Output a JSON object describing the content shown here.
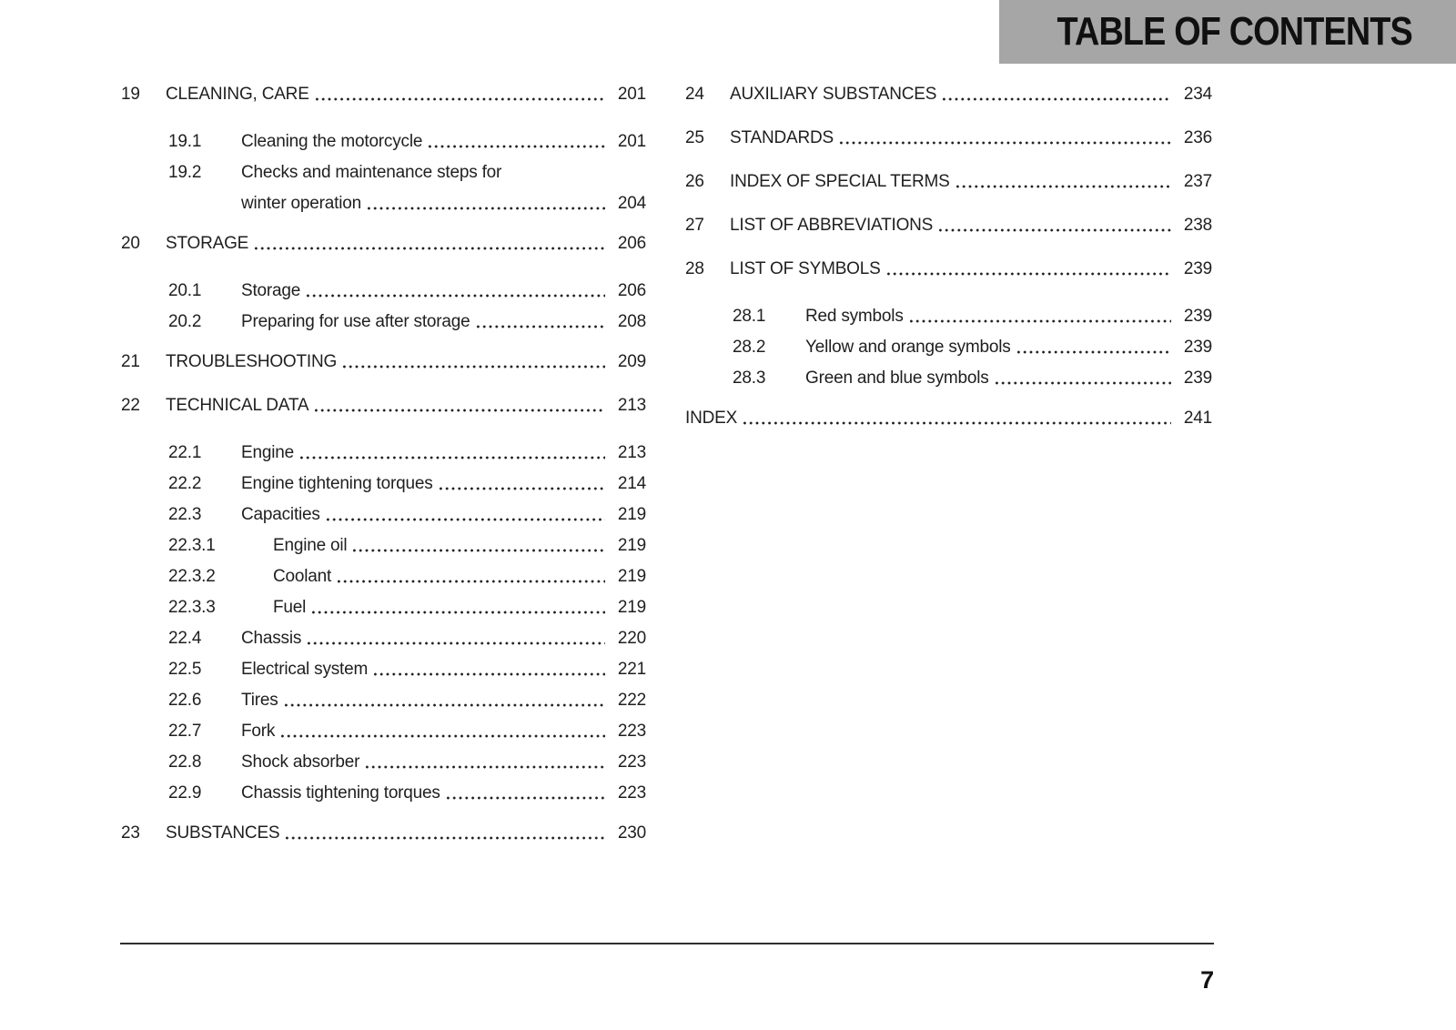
{
  "header": {
    "title": "TABLE OF CONTENTS"
  },
  "footer": {
    "page_number": "7"
  },
  "colors": {
    "header_bg": "#a6a6a6",
    "text": "#1f1f1f",
    "rule": "#2d2d2d"
  },
  "toc": {
    "columns": [
      {
        "entries": [
          {
            "level": "chapter",
            "number": "19",
            "title": "CLEANING, CARE",
            "page": "201"
          },
          {
            "level": "sub",
            "number": "19.1",
            "title": "Cleaning the motorcycle",
            "page": "201"
          },
          {
            "level": "sub",
            "number": "19.2",
            "title_line1": "Checks and maintenance steps for",
            "title": "winter operation",
            "page": "204"
          },
          {
            "level": "chapter",
            "number": "20",
            "title": "STORAGE",
            "page": "206"
          },
          {
            "level": "sub",
            "number": "20.1",
            "title": "Storage",
            "page": "206"
          },
          {
            "level": "sub",
            "number": "20.2",
            "title": "Preparing for use after storage",
            "page": "208"
          },
          {
            "level": "chapter",
            "number": "21",
            "title": "TROUBLESHOOTING",
            "page": "209"
          },
          {
            "level": "chapter",
            "number": "22",
            "title": "TECHNICAL DATA",
            "page": "213"
          },
          {
            "level": "sub",
            "number": "22.1",
            "title": "Engine",
            "page": "213"
          },
          {
            "level": "sub",
            "number": "22.2",
            "title": "Engine tightening torques",
            "page": "214"
          },
          {
            "level": "sub",
            "number": "22.3",
            "title": "Capacities",
            "page": "219"
          },
          {
            "level": "subsub",
            "number": "22.3.1",
            "title": "Engine oil",
            "page": "219"
          },
          {
            "level": "subsub",
            "number": "22.3.2",
            "title": "Coolant",
            "page": "219"
          },
          {
            "level": "subsub",
            "number": "22.3.3",
            "title": "Fuel",
            "page": "219"
          },
          {
            "level": "sub",
            "number": "22.4",
            "title": "Chassis",
            "page": "220"
          },
          {
            "level": "sub",
            "number": "22.5",
            "title": "Electrical system",
            "page": "221"
          },
          {
            "level": "sub",
            "number": "22.6",
            "title": "Tires",
            "page": "222"
          },
          {
            "level": "sub",
            "number": "22.7",
            "title": "Fork",
            "page": "223"
          },
          {
            "level": "sub",
            "number": "22.8",
            "title": "Shock absorber",
            "page": "223"
          },
          {
            "level": "sub",
            "number": "22.9",
            "title": "Chassis tightening torques",
            "page": "223"
          },
          {
            "level": "chapter",
            "number": "23",
            "title": "SUBSTANCES",
            "page": "230"
          }
        ]
      },
      {
        "entries": [
          {
            "level": "chapter",
            "number": "24",
            "title": "AUXILIARY SUBSTANCES",
            "page": "234"
          },
          {
            "level": "chapter",
            "number": "25",
            "title": "STANDARDS",
            "page": "236"
          },
          {
            "level": "chapter",
            "number": "26",
            "title": "INDEX OF SPECIAL TERMS",
            "page": "237"
          },
          {
            "level": "chapter",
            "number": "27",
            "title": "LIST OF ABBREVIATIONS",
            "page": "238"
          },
          {
            "level": "chapter",
            "number": "28",
            "title": "LIST OF SYMBOLS",
            "page": "239"
          },
          {
            "level": "sub",
            "number": "28.1",
            "title": "Red symbols",
            "page": "239"
          },
          {
            "level": "sub",
            "number": "28.2",
            "title": "Yellow and orange symbols",
            "page": "239"
          },
          {
            "level": "sub",
            "number": "28.3",
            "title": "Green and blue symbols",
            "page": "239"
          },
          {
            "level": "index",
            "number": "",
            "title": "INDEX",
            "page": "241"
          }
        ]
      }
    ]
  }
}
